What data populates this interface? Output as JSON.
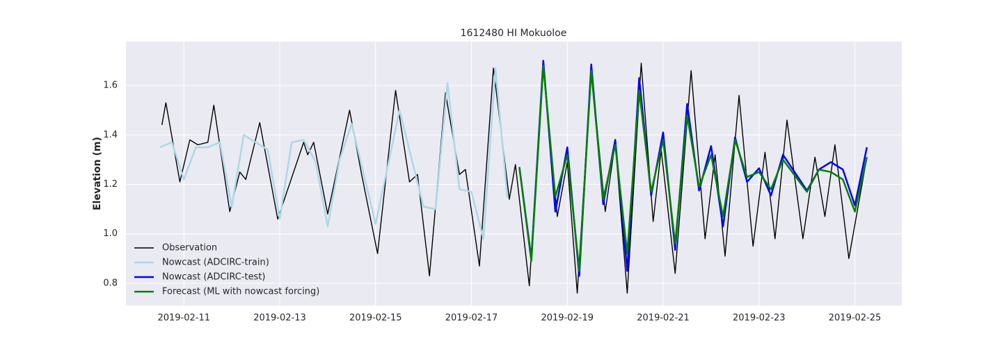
{
  "chart_data": {
    "type": "line",
    "title": "1612480 HI Mokuoloe",
    "y_label": "Elevation (m)",
    "xlim": [
      "2019-02-09 19:00",
      "2019-02-25 23:30"
    ],
    "xticks": [
      "2019-02-11",
      "2019-02-13",
      "2019-02-15",
      "2019-02-17",
      "2019-02-19",
      "2019-02-21",
      "2019-02-23",
      "2019-02-25"
    ],
    "ylim": [
      0.71,
      1.777
    ],
    "yticks": [
      0.8,
      {
        "value": 1,
        "label": "1.0"
      },
      1.2,
      1.4,
      1.6
    ],
    "grid": true,
    "legend": "lower left",
    "series": [
      {
        "name": "Observation",
        "color": "#000000",
        "x": [
          "2019-02-10 13:00",
          "2019-02-10 15:00",
          "2019-02-10 22:00",
          "2019-02-11 03:00",
          "2019-02-11 07:00",
          "2019-02-11 12:00",
          "2019-02-11 15:00",
          "2019-02-11 23:00",
          "2019-02-12 04:00",
          "2019-02-12 07:00",
          "2019-02-12 14:00",
          "2019-02-12 23:00",
          "2019-02-13 12:00",
          "2019-02-13 14:00",
          "2019-02-13 17:00",
          "2019-02-14 00:00",
          "2019-02-14 11:00",
          "2019-02-14 17:00",
          "2019-02-15 01:00",
          "2019-02-15 10:00",
          "2019-02-15 17:00",
          "2019-02-15 21:00",
          "2019-02-16 03:00",
          "2019-02-16 11:00",
          "2019-02-16 18:00",
          "2019-02-16 21:00",
          "2019-02-17 04:00",
          "2019-02-17 11:00",
          "2019-02-17 19:00",
          "2019-02-17 22:00",
          "2019-02-18 05:00",
          "2019-02-18 12:00",
          "2019-02-18 19:00",
          "2019-02-19 00:00",
          "2019-02-19 05:00",
          "2019-02-19 12:00",
          "2019-02-19 19:00",
          "2019-02-20 00:00",
          "2019-02-20 06:00",
          "2019-02-20 13:00",
          "2019-02-20 19:00",
          "2019-02-20 23:00",
          "2019-02-21 06:00",
          "2019-02-21 14:00",
          "2019-02-21 21:00",
          "2019-02-22 02:00",
          "2019-02-22 07:00",
          "2019-02-22 14:00",
          "2019-02-22 21:00",
          "2019-02-23 03:00",
          "2019-02-23 08:00",
          "2019-02-23 14:00",
          "2019-02-23 22:00",
          "2019-02-24 04:00",
          "2019-02-24 09:00",
          "2019-02-24 14:00",
          "2019-02-24 21:00",
          "2019-02-25 06:00"
        ],
        "values": [
          1.44,
          1.53,
          1.21,
          1.38,
          1.36,
          1.37,
          1.52,
          1.09,
          1.25,
          1.22,
          1.45,
          1.06,
          1.37,
          1.32,
          1.37,
          1.08,
          1.5,
          1.24,
          0.92,
          1.58,
          1.21,
          1.24,
          0.83,
          1.57,
          1.24,
          1.26,
          0.87,
          1.67,
          1.14,
          1.28,
          0.79,
          1.68,
          1.07,
          1.29,
          0.76,
          1.67,
          1.09,
          1.37,
          0.76,
          1.69,
          1.05,
          1.34,
          0.84,
          1.66,
          0.98,
          1.32,
          0.91,
          1.56,
          0.95,
          1.33,
          0.98,
          1.46,
          0.98,
          1.31,
          1.07,
          1.36,
          0.9,
          1.31
        ]
      },
      {
        "name": "Nowcast (ADCIRC-train)",
        "color": "#add8e6",
        "x": [
          "2019-02-10 12:00",
          "2019-02-10 18:00",
          "2019-02-11 00:00",
          "2019-02-11 06:00",
          "2019-02-11 12:00",
          "2019-02-11 18:00",
          "2019-02-12 00:00",
          "2019-02-12 06:00",
          "2019-02-12 18:00",
          "2019-02-13 00:00",
          "2019-02-13 06:00",
          "2019-02-13 12:00",
          "2019-02-13 18:00",
          "2019-02-14 00:00",
          "2019-02-14 06:00",
          "2019-02-14 12:00",
          "2019-02-15 00:00",
          "2019-02-15 12:00",
          "2019-02-16 00:00",
          "2019-02-16 06:00",
          "2019-02-16 12:00",
          "2019-02-16 18:00",
          "2019-02-17 00:00",
          "2019-02-17 06:00",
          "2019-02-17 12:00",
          "2019-02-17 18:00"
        ],
        "values": [
          1.35,
          1.37,
          1.22,
          1.35,
          1.35,
          1.37,
          1.11,
          1.4,
          1.34,
          1.06,
          1.37,
          1.38,
          1.29,
          1.03,
          1.3,
          1.445,
          1.04,
          1.5,
          1.11,
          1.1,
          1.61,
          1.18,
          1.17,
          0.98,
          1.67,
          1.145
        ]
      },
      {
        "name": "Nowcast (ADCIRC-test)",
        "color": "#0000ff",
        "x": [
          "2019-02-18 00:00",
          "2019-02-18 06:00",
          "2019-02-18 12:00",
          "2019-02-18 18:00",
          "2019-02-19 00:00",
          "2019-02-19 06:00",
          "2019-02-19 12:00",
          "2019-02-19 18:00",
          "2019-02-20 00:00",
          "2019-02-20 06:00",
          "2019-02-20 12:00",
          "2019-02-20 18:00",
          "2019-02-21 00:00",
          "2019-02-21 06:00",
          "2019-02-21 12:00",
          "2019-02-21 18:00",
          "2019-02-22 00:00",
          "2019-02-22 06:00",
          "2019-02-22 12:00",
          "2019-02-22 18:00",
          "2019-02-23 00:00",
          "2019-02-23 06:00",
          "2019-02-23 12:00",
          "2019-02-24 00:00",
          "2019-02-24 06:00",
          "2019-02-24 12:00",
          "2019-02-24 18:00",
          "2019-02-25 00:00",
          "2019-02-25 06:00"
        ],
        "values": [
          1.27,
          0.9,
          1.7,
          1.09,
          1.35,
          0.83,
          1.685,
          1.12,
          1.38,
          0.85,
          1.63,
          1.155,
          1.41,
          0.935,
          1.525,
          1.175,
          1.355,
          1.03,
          1.39,
          1.21,
          1.265,
          1.155,
          1.32,
          1.175,
          1.26,
          1.29,
          1.26,
          1.115,
          1.35
        ]
      },
      {
        "name": "Forecast (ML with nowcast forcing)",
        "color": "#008000",
        "x": [
          "2019-02-18 00:00",
          "2019-02-18 06:00",
          "2019-02-18 12:00",
          "2019-02-18 18:00",
          "2019-02-19 00:00",
          "2019-02-19 06:00",
          "2019-02-19 12:00",
          "2019-02-19 18:00",
          "2019-02-20 00:00",
          "2019-02-20 06:00",
          "2019-02-20 12:00",
          "2019-02-20 18:00",
          "2019-02-21 00:00",
          "2019-02-21 06:00",
          "2019-02-21 12:00",
          "2019-02-21 18:00",
          "2019-02-22 00:00",
          "2019-02-22 06:00",
          "2019-02-22 12:00",
          "2019-02-22 18:00",
          "2019-02-23 00:00",
          "2019-02-23 06:00",
          "2019-02-23 12:00",
          "2019-02-24 00:00",
          "2019-02-24 06:00",
          "2019-02-24 12:00",
          "2019-02-24 18:00",
          "2019-02-25 00:00",
          "2019-02-25 06:00"
        ],
        "values": [
          1.27,
          0.89,
          1.68,
          1.15,
          1.32,
          0.85,
          1.66,
          1.14,
          1.36,
          0.92,
          1.58,
          1.17,
          1.38,
          0.96,
          1.48,
          1.19,
          1.32,
          1.07,
          1.38,
          1.23,
          1.25,
          1.18,
          1.3,
          1.17,
          1.26,
          1.25,
          1.22,
          1.09,
          1.31
        ]
      }
    ]
  }
}
